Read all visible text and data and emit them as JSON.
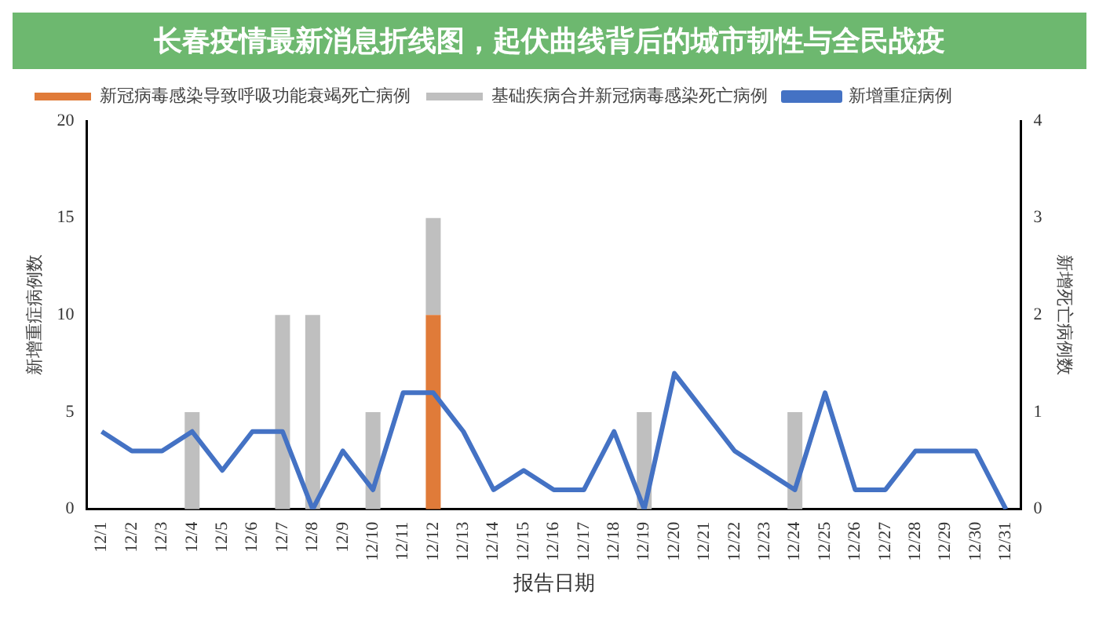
{
  "chart_data": {
    "type": "bar",
    "title": "长春疫情最新消息折线图，起伏曲线背后的城市韧性与全民战疫",
    "xlabel": "报告日期",
    "ylabel": "新增重症病例数",
    "y2label": "新增死亡病例数",
    "categories": [
      "12/1",
      "12/2",
      "12/3",
      "12/4",
      "12/5",
      "12/6",
      "12/7",
      "12/8",
      "12/9",
      "12/10",
      "12/11",
      "12/12",
      "12/13",
      "12/14",
      "12/15",
      "12/16",
      "12/17",
      "12/18",
      "12/19",
      "12/20",
      "12/21",
      "12/22",
      "12/23",
      "12/24",
      "12/25",
      "12/26",
      "12/27",
      "12/28",
      "12/29",
      "12/30",
      "12/31"
    ],
    "stacked": true,
    "series": [
      {
        "name": "新冠病毒感染导致呼吸功能衰竭死亡病例",
        "axis": "y2",
        "color": "#e07b39",
        "values": [
          0,
          0,
          0,
          0,
          0,
          0,
          0,
          0,
          0,
          0,
          0,
          2,
          0,
          0,
          0,
          0,
          0,
          0,
          0,
          0,
          0,
          0,
          0,
          0,
          0,
          0,
          0,
          0,
          0,
          0,
          0
        ]
      },
      {
        "name": "基础疾病合并新冠病毒感染死亡病例",
        "axis": "y2",
        "color": "#bfbfbf",
        "values": [
          0,
          0,
          0,
          1,
          0,
          0,
          2,
          2,
          0,
          1,
          0,
          1,
          0,
          0,
          0,
          0,
          0,
          0,
          1,
          0,
          0,
          0,
          0,
          1,
          0,
          0,
          0,
          0,
          0,
          0,
          0
        ]
      },
      {
        "name": "新增重症病例",
        "type": "line",
        "axis": "y",
        "color": "#4472c4",
        "values": [
          4,
          3,
          3,
          4,
          2,
          4,
          4,
          0,
          3,
          1,
          6,
          6,
          4,
          1,
          2,
          1,
          1,
          4,
          0,
          7,
          5,
          3,
          2,
          1,
          6,
          1,
          1,
          3,
          3,
          3,
          0
        ]
      }
    ],
    "ylim": [
      0,
      20
    ],
    "yticks": [
      0,
      5,
      10,
      15,
      20
    ],
    "y2lim": [
      0,
      4
    ],
    "y2ticks": [
      0,
      1,
      2,
      3,
      4
    ],
    "grid": false,
    "legend": "top left",
    "marker": "none",
    "line_style": "solid"
  }
}
